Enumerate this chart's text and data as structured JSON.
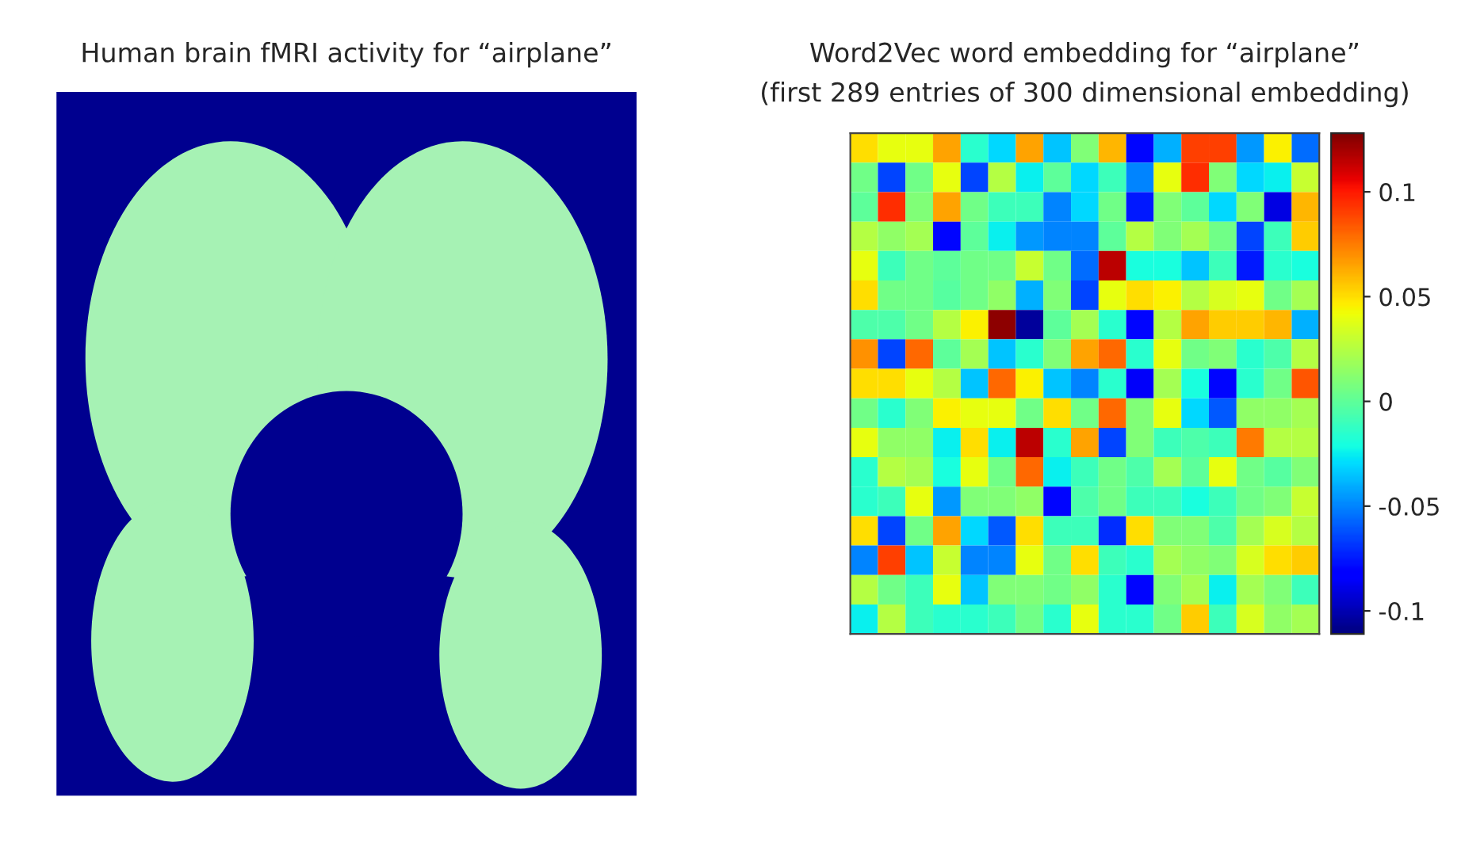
{
  "chart_data": [
    {
      "type": "other",
      "title": "Human brain fMRI activity for “airplane”"
    },
    {
      "type": "heatmap",
      "title": "Word2Vec word embedding for “airplane”",
      "subtitle": "(first 289 entries of 300 dimensional embedding)",
      "categories": [
        null,
        null,
        null,
        null,
        null,
        null,
        null,
        null,
        null,
        null,
        null,
        null,
        null,
        null,
        null,
        null,
        null
      ],
      "y_categories": [
        null,
        null,
        null,
        null,
        null,
        null,
        null,
        null,
        null,
        null,
        null,
        null,
        null,
        null,
        null,
        null,
        null
      ],
      "cells": [
        [
          0.05,
          0.04,
          0.04,
          0.065,
          -0.015,
          -0.03,
          0.065,
          -0.035,
          0.01,
          0.06,
          -0.08,
          -0.04,
          0.09,
          0.09,
          -0.045,
          0.045,
          -0.055
        ],
        [
          0.005,
          -0.065,
          0.005,
          0.04,
          -0.065,
          0.025,
          -0.025,
          0.0,
          -0.03,
          -0.01,
          -0.05,
          0.04,
          0.095,
          0.01,
          -0.03,
          -0.025,
          0.03
        ],
        [
          0.0,
          0.095,
          0.01,
          0.065,
          0.005,
          -0.01,
          -0.01,
          -0.05,
          -0.03,
          0.005,
          -0.075,
          0.01,
          0.0,
          -0.03,
          0.01,
          -0.09,
          0.06
        ],
        [
          0.025,
          0.015,
          0.02,
          -0.08,
          0.0,
          -0.025,
          -0.045,
          -0.05,
          -0.05,
          0.0,
          0.025,
          0.01,
          0.02,
          0.005,
          -0.065,
          -0.01,
          0.055
        ],
        [
          0.04,
          -0.01,
          0.005,
          0.0,
          0.005,
          0.005,
          0.03,
          0.005,
          -0.055,
          0.115,
          -0.02,
          -0.02,
          -0.035,
          -0.01,
          -0.075,
          -0.015,
          -0.02
        ],
        [
          0.05,
          0.005,
          0.005,
          -0.002,
          0.005,
          0.015,
          -0.04,
          0.01,
          -0.065,
          0.04,
          0.05,
          0.045,
          0.025,
          0.035,
          0.04,
          0.005,
          0.02
        ],
        [
          -0.005,
          -0.005,
          0.005,
          0.025,
          0.045,
          0.125,
          -0.105,
          0.0,
          0.02,
          -0.015,
          -0.08,
          0.025,
          0.065,
          0.055,
          0.055,
          0.06,
          -0.04
        ],
        [
          0.07,
          -0.065,
          0.08,
          0.0,
          0.02,
          -0.035,
          -0.015,
          0.01,
          0.065,
          0.08,
          -0.015,
          0.04,
          0.005,
          0.01,
          -0.015,
          -0.005,
          0.025
        ],
        [
          0.05,
          0.05,
          0.04,
          0.025,
          -0.035,
          0.08,
          0.045,
          -0.035,
          -0.05,
          -0.015,
          -0.085,
          0.02,
          -0.02,
          -0.08,
          -0.015,
          0.005,
          0.085
        ],
        [
          0.005,
          -0.015,
          0.01,
          0.045,
          0.04,
          0.04,
          0.005,
          0.05,
          0.005,
          0.08,
          0.01,
          0.04,
          -0.03,
          -0.06,
          0.015,
          0.015,
          0.02
        ],
        [
          0.04,
          0.015,
          0.015,
          -0.025,
          0.05,
          -0.025,
          0.115,
          -0.015,
          0.065,
          -0.065,
          0.01,
          -0.01,
          -0.005,
          -0.01,
          0.075,
          0.025,
          0.025
        ],
        [
          -0.015,
          0.025,
          0.02,
          -0.02,
          0.04,
          0.005,
          0.08,
          -0.025,
          -0.01,
          0.005,
          -0.005,
          0.02,
          0.0,
          0.04,
          0.005,
          -0.002,
          0.01
        ],
        [
          -0.015,
          -0.01,
          0.04,
          -0.045,
          0.01,
          0.01,
          0.015,
          -0.08,
          -0.005,
          0.005,
          -0.01,
          -0.01,
          -0.02,
          -0.01,
          0.005,
          0.01,
          0.03
        ],
        [
          0.05,
          -0.065,
          0.005,
          0.065,
          -0.03,
          -0.06,
          0.05,
          -0.01,
          -0.01,
          -0.07,
          0.05,
          0.01,
          0.01,
          -0.005,
          0.02,
          0.035,
          0.025
        ],
        [
          -0.05,
          0.09,
          -0.035,
          0.03,
          -0.05,
          -0.05,
          0.04,
          0.005,
          0.05,
          -0.01,
          -0.015,
          0.02,
          0.015,
          0.01,
          0.035,
          0.05,
          0.055
        ],
        [
          0.025,
          0.005,
          -0.01,
          0.04,
          -0.035,
          0.01,
          0.01,
          0.005,
          0.015,
          -0.015,
          -0.08,
          0.01,
          0.02,
          -0.025,
          0.02,
          0.01,
          -0.01
        ],
        [
          -0.025,
          0.025,
          -0.01,
          -0.015,
          -0.015,
          -0.01,
          0.005,
          -0.015,
          0.04,
          -0.015,
          -0.015,
          0.005,
          0.055,
          -0.01,
          0.035,
          0.015,
          0.02
        ]
      ],
      "clim": [
        -0.111,
        0.128
      ],
      "cticks": [
        -0.1,
        -0.05,
        0,
        0.05,
        0.1
      ]
    }
  ]
}
